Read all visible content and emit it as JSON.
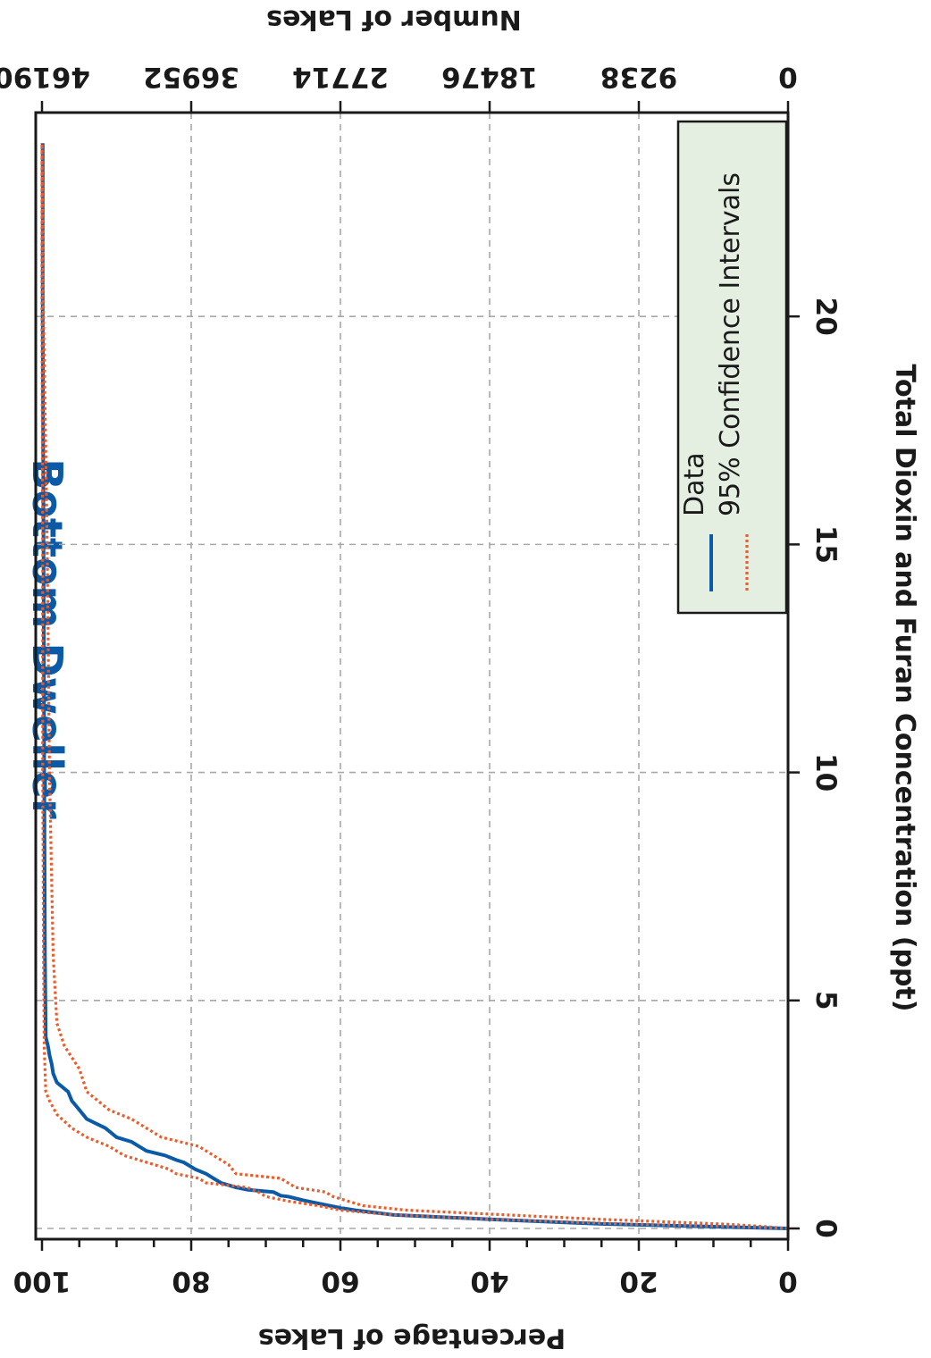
{
  "chart_data": {
    "type": "line",
    "title": "Bottom Dweller",
    "orientation": "rotated-90-clockwise",
    "xlabel": "Total Dioxin and Furan Concentration (ppt)",
    "ylabel": "Percentage of Lakes",
    "y2label": "Number of Lakes",
    "xlim": [
      0,
      24
    ],
    "ylim": [
      0,
      100
    ],
    "y2lim": [
      0,
      46190
    ],
    "x_ticks": [
      "0",
      "5",
      "10",
      "15",
      "20"
    ],
    "y_ticks": [
      "0",
      "20",
      "40",
      "60",
      "80",
      "100"
    ],
    "y2_ticks": [
      "0",
      "9238",
      "18476",
      "27714",
      "36952",
      "46190"
    ],
    "grid": true,
    "legend": {
      "position": "bottom-right",
      "entries": [
        "Data",
        "95% Confidence Intervals"
      ]
    },
    "series": [
      {
        "name": "Data",
        "color": "#0b5aa7",
        "style": "solid",
        "x": [
          0.0,
          0.02,
          0.05,
          0.1,
          0.2,
          0.3,
          0.4,
          0.45,
          0.5,
          0.55,
          0.62,
          0.7,
          0.72,
          0.8,
          0.85,
          0.9,
          1.0,
          1.1,
          1.2,
          1.3,
          1.4,
          1.45,
          1.5,
          1.6,
          1.7,
          1.8,
          1.9,
          2.0,
          2.2,
          2.4,
          2.6,
          2.8,
          3.0,
          3.2,
          3.4,
          3.6,
          3.8,
          4.0,
          4.2,
          6.0,
          10.0,
          15.0,
          20.0,
          23.8
        ],
        "y": [
          0.0,
          5.0,
          13.0,
          25.0,
          40.0,
          53.0,
          58.0,
          60.0,
          61.5,
          63.0,
          65.0,
          67.0,
          68.0,
          69.0,
          72.5,
          74.0,
          76.0,
          77.0,
          78.0,
          79.5,
          80.5,
          81.0,
          82.0,
          83.5,
          86.0,
          87.0,
          88.0,
          90.0,
          91.5,
          94.0,
          95.0,
          96.0,
          96.5,
          98.0,
          98.5,
          98.7,
          99.0,
          99.2,
          99.5,
          99.6,
          99.7,
          99.8,
          99.9,
          99.9
        ]
      },
      {
        "name": "95% Confidence Intervals (upper)",
        "color": "#ec5b2a",
        "style": "dotted",
        "x": [
          0.0,
          0.05,
          0.1,
          0.2,
          0.3,
          0.4,
          0.5,
          0.6,
          0.7,
          0.8,
          0.9,
          1.0,
          1.1,
          1.2,
          1.3,
          1.5,
          1.6,
          1.8,
          2.0,
          2.2,
          2.5,
          2.8,
          3.0,
          4.0,
          6.0,
          10.0,
          15.0,
          20.0,
          23.8
        ],
        "y": [
          0.0,
          10.0,
          22.0,
          40.0,
          53.0,
          60.0,
          63.0,
          67.0,
          70.0,
          71.0,
          72.5,
          78.0,
          79.0,
          82.0,
          83.0,
          87.0,
          89.0,
          91.0,
          94.0,
          96.0,
          98.0,
          99.0,
          99.5,
          99.7,
          99.8,
          99.9,
          99.9,
          100.0,
          100.0
        ]
      },
      {
        "name": "95% Confidence Intervals (lower)",
        "color": "#ec5b2a",
        "style": "dotted",
        "x": [
          0.0,
          0.05,
          0.1,
          0.2,
          0.3,
          0.4,
          0.5,
          0.6,
          0.7,
          0.8,
          0.9,
          1.0,
          1.1,
          1.2,
          1.4,
          1.6,
          1.8,
          2.0,
          2.2,
          2.4,
          2.6,
          2.8,
          3.0,
          3.5,
          4.0,
          4.5,
          6.0,
          10.0,
          15.0,
          17.0,
          20.0,
          23.8
        ],
        "y": [
          0.0,
          4.0,
          9.0,
          25.0,
          38.0,
          51.0,
          57.0,
          59.0,
          61.0,
          62.0,
          66.0,
          67.0,
          68.0,
          74.0,
          75.0,
          77.0,
          79.0,
          84.0,
          86.0,
          88.0,
          91.0,
          92.5,
          94.0,
          95.0,
          97.0,
          98.0,
          98.5,
          99.0,
          99.3,
          99.5,
          99.8,
          100.0
        ]
      }
    ]
  }
}
